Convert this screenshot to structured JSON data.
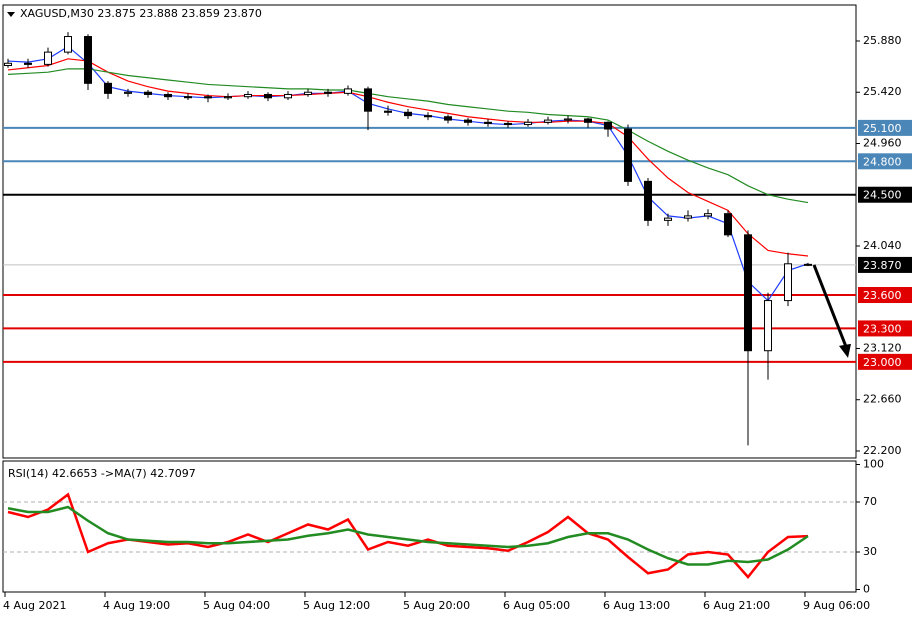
{
  "chart_data": [
    {
      "type": "candlestick",
      "title": "XAGUSD,M30  23.875 23.888 23.859 23.870",
      "categories": [
        "4 Aug 2021",
        null,
        null,
        null,
        null,
        "4 Aug 19:00",
        null,
        null,
        null,
        null,
        "5 Aug 04:00",
        null,
        null,
        null,
        null,
        "5 Aug 12:00",
        null,
        null,
        null,
        null,
        "5 Aug 20:00",
        null,
        null,
        null,
        null,
        "6 Aug 05:00",
        null,
        null,
        null,
        null,
        "6 Aug 13:00",
        null,
        null,
        null,
        null,
        "6 Aug 21:00",
        null,
        null,
        null,
        null,
        "9 Aug 06:00"
      ],
      "open": [
        25.66,
        25.68,
        25.67,
        25.78,
        25.92,
        25.5,
        25.41,
        25.42,
        25.4,
        25.38,
        25.38,
        25.37,
        25.38,
        25.4,
        25.37,
        25.4,
        25.42,
        25.41,
        25.45,
        25.25,
        25.24,
        25.21,
        25.2,
        25.17,
        25.15,
        25.14,
        25.13,
        25.15,
        25.17,
        25.18,
        25.15,
        25.09,
        24.62,
        24.27,
        24.29,
        24.31,
        24.33,
        24.14,
        23.1,
        23.55,
        23.875
      ],
      "high": [
        25.72,
        25.72,
        25.82,
        25.96,
        25.94,
        25.52,
        25.45,
        25.44,
        25.42,
        25.41,
        25.4,
        25.41,
        25.43,
        25.42,
        25.43,
        25.45,
        25.45,
        25.48,
        25.47,
        25.3,
        25.27,
        25.24,
        25.22,
        25.19,
        25.18,
        25.16,
        25.18,
        25.2,
        25.21,
        25.19,
        25.16,
        25.13,
        24.65,
        24.33,
        24.36,
        24.37,
        24.36,
        24.18,
        23.62,
        23.98,
        23.888
      ],
      "low": [
        25.64,
        25.64,
        25.65,
        25.76,
        25.44,
        25.36,
        25.38,
        25.37,
        25.35,
        25.35,
        25.33,
        25.35,
        25.36,
        25.34,
        25.35,
        25.38,
        25.38,
        25.39,
        25.08,
        25.21,
        25.18,
        25.17,
        25.14,
        25.12,
        25.11,
        25.1,
        25.11,
        25.13,
        25.14,
        25.1,
        25.02,
        24.58,
        24.22,
        24.22,
        24.26,
        24.28,
        24.12,
        22.25,
        22.84,
        23.5,
        23.859
      ],
      "close": [
        25.68,
        25.67,
        25.78,
        25.92,
        25.5,
        25.41,
        25.42,
        25.4,
        25.38,
        25.38,
        25.37,
        25.38,
        25.4,
        25.37,
        25.4,
        25.42,
        25.41,
        25.45,
        25.25,
        25.24,
        25.21,
        25.2,
        25.17,
        25.15,
        25.14,
        25.13,
        25.15,
        25.17,
        25.18,
        25.15,
        25.09,
        24.62,
        24.27,
        24.29,
        24.31,
        24.33,
        24.14,
        23.1,
        23.55,
        23.88,
        23.87
      ],
      "up_color": "#ffffff",
      "down_color": "#000000",
      "wick_color": "#000000",
      "series": [
        {
          "color": "#1e3cff",
          "values": [
            25.7,
            25.69,
            25.72,
            25.83,
            25.68,
            25.47,
            25.43,
            25.41,
            25.39,
            25.38,
            25.37,
            25.38,
            25.39,
            25.38,
            25.39,
            25.41,
            25.41,
            25.43,
            25.32,
            25.27,
            25.23,
            25.21,
            25.18,
            25.16,
            25.14,
            25.13,
            25.14,
            25.16,
            25.17,
            25.16,
            25.12,
            24.85,
            24.48,
            24.31,
            24.29,
            24.31,
            24.24,
            23.72,
            23.55,
            23.82,
            23.88
          ]
        },
        {
          "color": "#ff0000",
          "values": [
            25.62,
            25.64,
            25.66,
            25.72,
            25.7,
            25.6,
            25.52,
            25.47,
            25.43,
            25.41,
            25.39,
            25.38,
            25.39,
            25.39,
            25.39,
            25.4,
            25.41,
            25.42,
            25.38,
            25.33,
            25.29,
            25.26,
            25.23,
            25.2,
            25.18,
            25.16,
            25.15,
            25.15,
            25.16,
            25.16,
            25.14,
            25.02,
            24.82,
            24.65,
            24.52,
            24.44,
            24.36,
            24.15,
            24.0,
            23.97,
            23.95
          ]
        },
        {
          "color": "#228b22",
          "values": [
            25.58,
            25.59,
            25.6,
            25.63,
            25.63,
            25.6,
            25.57,
            25.55,
            25.53,
            25.51,
            25.49,
            25.48,
            25.47,
            25.46,
            25.45,
            25.45,
            25.44,
            25.44,
            25.41,
            25.38,
            25.36,
            25.34,
            25.31,
            25.29,
            25.27,
            25.25,
            25.24,
            25.22,
            25.21,
            25.2,
            25.17,
            25.08,
            24.98,
            24.89,
            24.81,
            24.74,
            24.68,
            24.58,
            24.5,
            24.46,
            24.43
          ]
        }
      ],
      "levels": [
        {
          "value": 25.1,
          "label": "25.100",
          "color": "#4a86b8"
        },
        {
          "value": 24.8,
          "label": "24.800",
          "color": "#4a86b8"
        },
        {
          "value": 24.5,
          "label": "24.500",
          "color": "#000000"
        },
        {
          "value": 23.6,
          "label": "23.600",
          "color": "#e00000"
        },
        {
          "value": 23.3,
          "label": "23.300",
          "color": "#e00000"
        },
        {
          "value": 23.0,
          "label": "23.000",
          "color": "#e00000"
        }
      ],
      "last_price": {
        "value": 23.87,
        "label": "23.870",
        "color": "#000000"
      },
      "ylim": [
        22.137,
        26.203
      ],
      "yticks": [
        {
          "value": 25.88,
          "label": "25.880"
        },
        {
          "value": 25.42,
          "label": "25.420"
        },
        {
          "value": 24.96,
          "label": "24.960"
        },
        {
          "value": 24.04,
          "label": "24.040"
        },
        {
          "value": 23.12,
          "label": "23.120"
        },
        {
          "value": 22.66,
          "label": "22.660"
        },
        {
          "value": 22.2,
          "label": "22.200"
        }
      ]
    },
    {
      "type": "line",
      "title": "RSI(14) 42.6653  ->MA(7) 42.7097",
      "series": [
        {
          "color": "#ff0000",
          "values": [
            62,
            58,
            64,
            76,
            30,
            37,
            40,
            38,
            36,
            37,
            34,
            38,
            44,
            38,
            45,
            52,
            48,
            56,
            32,
            38,
            35,
            40,
            35,
            34,
            33,
            31,
            38,
            46,
            58,
            45,
            40,
            26,
            13,
            16,
            28,
            30,
            28,
            10,
            30,
            42,
            42.6653
          ]
        },
        {
          "color": "#228b22",
          "values": [
            65,
            62,
            62,
            66,
            55,
            45,
            40,
            39,
            38,
            38,
            37,
            37,
            38,
            39,
            40,
            43,
            45,
            48,
            44,
            42,
            40,
            38,
            37,
            36,
            35,
            34,
            35,
            37,
            42,
            45,
            45,
            40,
            32,
            25,
            20,
            20,
            23,
            22,
            24,
            32,
            42.7097
          ]
        }
      ],
      "levels": [
        30,
        70
      ],
      "ylim": [
        -2,
        102.8
      ],
      "yticks": [
        0,
        30,
        70,
        100
      ]
    }
  ]
}
